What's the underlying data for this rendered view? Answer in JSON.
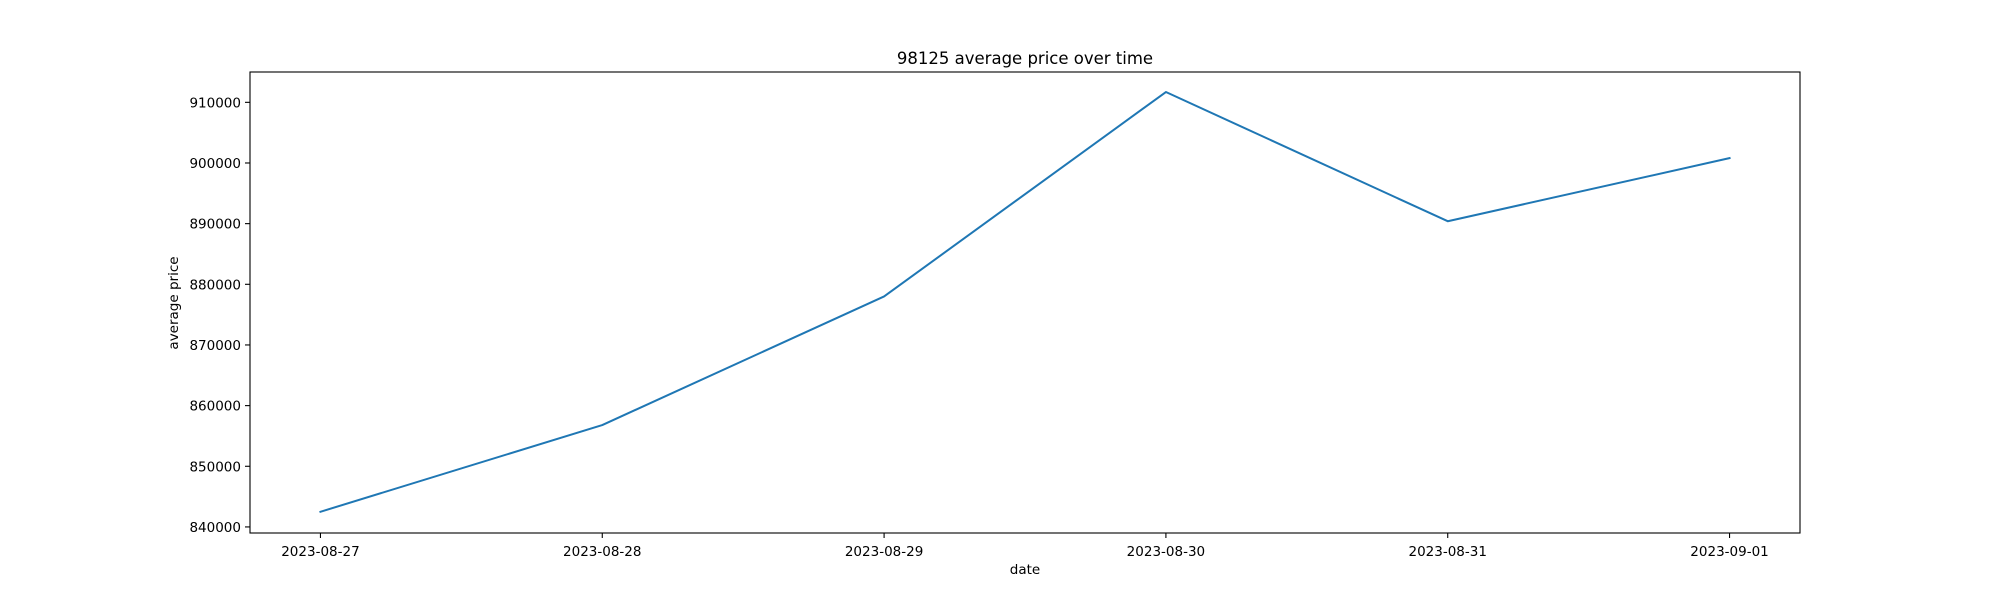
{
  "chart_data": {
    "type": "line",
    "title": "98125 average price over time",
    "xlabel": "date",
    "ylabel": "average price",
    "x": [
      "2023-08-27",
      "2023-08-28",
      "2023-08-29",
      "2023-08-30",
      "2023-08-31",
      "2023-09-01"
    ],
    "series": [
      {
        "values": [
          842500,
          856800,
          878000,
          911700,
          890400,
          900800
        ],
        "color": "#1f77b4"
      }
    ],
    "xlim": [
      "2023-08-26T18:00",
      "2023-09-01T06:00"
    ],
    "ylim": [
      839000,
      915000
    ],
    "yticks": [
      840000,
      850000,
      860000,
      870000,
      880000,
      890000,
      900000,
      910000
    ],
    "xtick_labels": [
      "2023-08-27",
      "2023-08-28",
      "2023-08-29",
      "2023-08-30",
      "2023-08-31",
      "2023-09-01"
    ],
    "ytick_labels": [
      "840000",
      "850000",
      "860000",
      "870000",
      "880000",
      "890000",
      "900000",
      "910000"
    ],
    "grid": false,
    "legend": "none"
  }
}
